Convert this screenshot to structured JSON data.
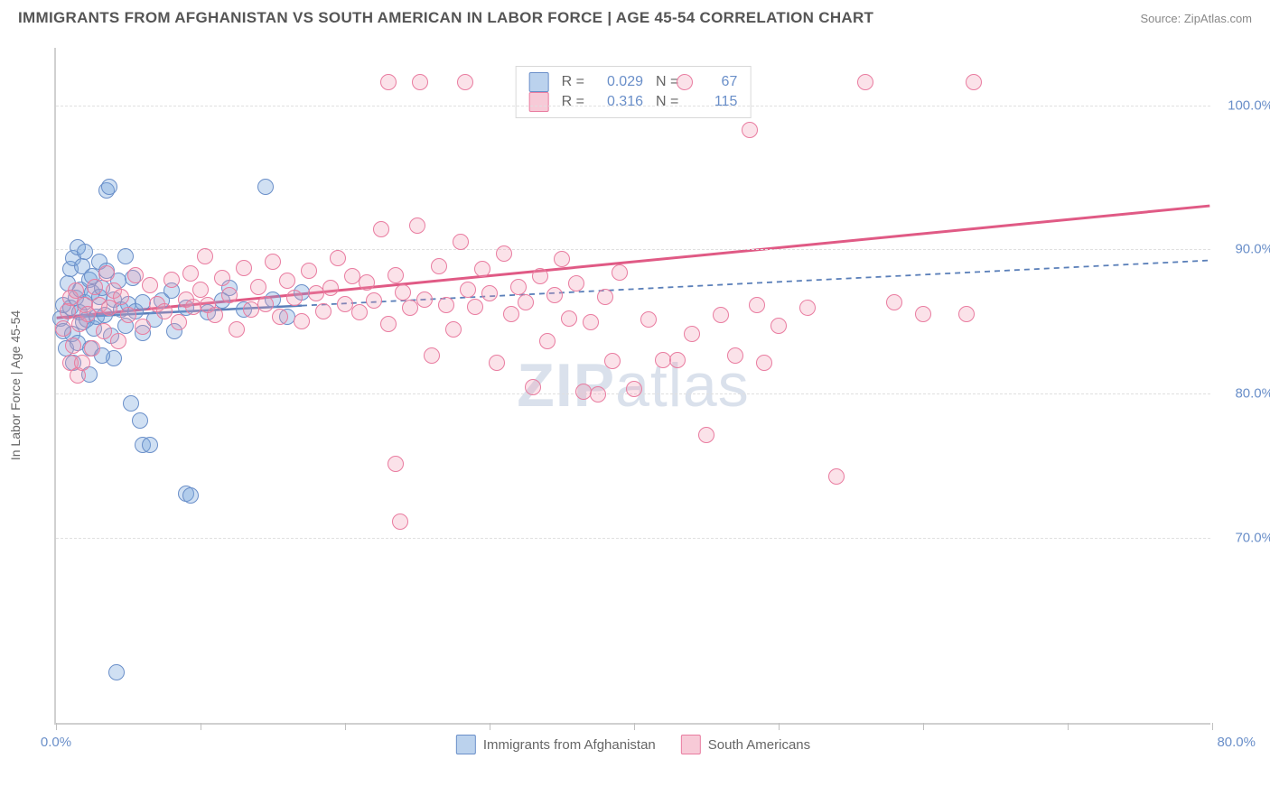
{
  "title": "IMMIGRANTS FROM AFGHANISTAN VS SOUTH AMERICAN IN LABOR FORCE | AGE 45-54 CORRELATION CHART",
  "source": "Source: ZipAtlas.com",
  "watermark_bold": "ZIP",
  "watermark_light": "atlas",
  "chart": {
    "type": "scatter",
    "xlim": [
      0,
      80
    ],
    "ylim": [
      57,
      104
    ],
    "xticks": [
      0,
      10,
      20,
      30,
      40,
      50,
      60,
      70,
      80
    ],
    "xtick_labels_shown": {
      "0": "0.0%",
      "80": "80.0%"
    },
    "yticks": [
      70,
      80,
      90,
      100
    ],
    "ytick_labels": [
      "70.0%",
      "80.0%",
      "90.0%",
      "100.0%"
    ],
    "yaxis_title": "In Labor Force | Age 45-54",
    "background_color": "#ffffff",
    "grid_color": "#e0e0e0",
    "grid_dash": "4,4",
    "marker_radius": 9,
    "axis_color": "#d0d0d0",
    "label_color": "#6a8fc9",
    "title_color": "#555555",
    "title_fontsize": 17
  },
  "series": [
    {
      "name": "Immigrants from Afghanistan",
      "color_fill": "rgba(120,165,220,0.35)",
      "color_stroke": "#6a8fc9",
      "R": "0.029",
      "N": "67",
      "trend": {
        "x1": 0,
        "y1": 85.2,
        "x2": 80,
        "y2": 89.2,
        "stroke": "#5a7fb9",
        "solid_until_x": 17
      },
      "points": [
        [
          0.3,
          85.1
        ],
        [
          0.5,
          86.0
        ],
        [
          0.5,
          84.2
        ],
        [
          0.7,
          83.0
        ],
        [
          0.8,
          87.5
        ],
        [
          1.0,
          85.8
        ],
        [
          1.0,
          88.5
        ],
        [
          1.1,
          84.0
        ],
        [
          1.2,
          89.3
        ],
        [
          1.2,
          82.0
        ],
        [
          1.4,
          86.5
        ],
        [
          1.5,
          90.0
        ],
        [
          1.5,
          83.4
        ],
        [
          1.6,
          85.5
        ],
        [
          1.7,
          87.1
        ],
        [
          1.8,
          88.7
        ],
        [
          1.9,
          84.8
        ],
        [
          2.0,
          86.2
        ],
        [
          2.0,
          89.7
        ],
        [
          2.1,
          85.0
        ],
        [
          2.3,
          87.8
        ],
        [
          2.4,
          83.0
        ],
        [
          2.5,
          86.9
        ],
        [
          2.5,
          88.0
        ],
        [
          2.6,
          84.4
        ],
        [
          2.8,
          85.2
        ],
        [
          3.0,
          89.0
        ],
        [
          3.0,
          86.6
        ],
        [
          3.2,
          87.2
        ],
        [
          3.4,
          85.3
        ],
        [
          3.5,
          88.4
        ],
        [
          3.5,
          94.0
        ],
        [
          3.7,
          94.2
        ],
        [
          3.8,
          83.9
        ],
        [
          4.0,
          86.4
        ],
        [
          4.0,
          82.3
        ],
        [
          4.3,
          87.7
        ],
        [
          4.5,
          85.7
        ],
        [
          4.8,
          84.6
        ],
        [
          4.8,
          89.4
        ],
        [
          5.0,
          86.1
        ],
        [
          5.2,
          79.2
        ],
        [
          5.3,
          87.9
        ],
        [
          5.5,
          85.6
        ],
        [
          5.8,
          78.0
        ],
        [
          6.0,
          86.2
        ],
        [
          6.0,
          76.3
        ],
        [
          6.0,
          84.1
        ],
        [
          6.5,
          76.3
        ],
        [
          6.8,
          85.0
        ],
        [
          7.3,
          86.3
        ],
        [
          8.0,
          87.0
        ],
        [
          8.2,
          84.2
        ],
        [
          9.0,
          85.8
        ],
        [
          9.0,
          72.9
        ],
        [
          9.3,
          72.8
        ],
        [
          10.5,
          85.5
        ],
        [
          11.5,
          86.3
        ],
        [
          12.0,
          87.2
        ],
        [
          13.0,
          85.7
        ],
        [
          14.5,
          94.2
        ],
        [
          15.0,
          86.4
        ],
        [
          16.0,
          85.2
        ],
        [
          17.0,
          86.9
        ],
        [
          4.2,
          60.5
        ],
        [
          3.2,
          82.5
        ],
        [
          2.3,
          81.2
        ]
      ]
    },
    {
      "name": "South Americans",
      "color_fill": "rgba(240,150,175,0.28)",
      "color_stroke": "#e97ca0",
      "R": "0.316",
      "N": "115",
      "trend": {
        "x1": 0,
        "y1": 85.2,
        "x2": 80,
        "y2": 93.0,
        "stroke": "#e05a85",
        "solid_until_x": 80
      },
      "points": [
        [
          0.5,
          84.4
        ],
        [
          0.8,
          85.6
        ],
        [
          1.0,
          82.0
        ],
        [
          1.0,
          86.5
        ],
        [
          1.2,
          83.2
        ],
        [
          1.4,
          87.0
        ],
        [
          1.5,
          81.1
        ],
        [
          1.6,
          84.7
        ],
        [
          1.8,
          82.0
        ],
        [
          2.0,
          86.0
        ],
        [
          2.2,
          85.4
        ],
        [
          2.5,
          83.0
        ],
        [
          2.7,
          87.3
        ],
        [
          3.0,
          86.0
        ],
        [
          3.3,
          84.2
        ],
        [
          3.5,
          88.2
        ],
        [
          3.7,
          85.8
        ],
        [
          4.0,
          87.0
        ],
        [
          4.3,
          83.5
        ],
        [
          4.5,
          86.6
        ],
        [
          5.0,
          85.3
        ],
        [
          5.5,
          88.1
        ],
        [
          6.0,
          84.5
        ],
        [
          6.5,
          87.4
        ],
        [
          7.0,
          86.1
        ],
        [
          7.5,
          85.6
        ],
        [
          8.0,
          87.8
        ],
        [
          8.5,
          84.8
        ],
        [
          9.0,
          86.4
        ],
        [
          9.3,
          88.2
        ],
        [
          9.5,
          85.9
        ],
        [
          10.0,
          87.1
        ],
        [
          10.3,
          89.4
        ],
        [
          10.5,
          86.0
        ],
        [
          11.0,
          85.3
        ],
        [
          11.5,
          87.9
        ],
        [
          12.0,
          86.7
        ],
        [
          12.5,
          84.3
        ],
        [
          13.0,
          88.6
        ],
        [
          13.5,
          85.7
        ],
        [
          14.0,
          87.3
        ],
        [
          14.5,
          86.1
        ],
        [
          15.0,
          89.0
        ],
        [
          15.5,
          85.2
        ],
        [
          16.0,
          87.7
        ],
        [
          16.5,
          86.5
        ],
        [
          17.0,
          84.9
        ],
        [
          17.5,
          88.4
        ],
        [
          18.0,
          86.8
        ],
        [
          18.5,
          85.6
        ],
        [
          19.0,
          87.2
        ],
        [
          19.5,
          89.3
        ],
        [
          20.0,
          86.1
        ],
        [
          20.5,
          88.0
        ],
        [
          21.0,
          85.5
        ],
        [
          21.5,
          87.6
        ],
        [
          22.0,
          86.3
        ],
        [
          22.5,
          91.3
        ],
        [
          23.0,
          84.7
        ],
        [
          23.5,
          88.1
        ],
        [
          24.0,
          86.9
        ],
        [
          24.5,
          85.8
        ],
        [
          25.0,
          91.5
        ],
        [
          25.2,
          101.5
        ],
        [
          25.5,
          86.4
        ],
        [
          26.0,
          82.5
        ],
        [
          26.5,
          88.7
        ],
        [
          27.0,
          86.0
        ],
        [
          27.5,
          84.3
        ],
        [
          28.0,
          90.4
        ],
        [
          28.3,
          101.5
        ],
        [
          28.5,
          87.1
        ],
        [
          29.0,
          85.9
        ],
        [
          29.5,
          88.5
        ],
        [
          30.0,
          86.8
        ],
        [
          30.5,
          82.0
        ],
        [
          31.0,
          89.6
        ],
        [
          31.5,
          85.4
        ],
        [
          32.0,
          87.3
        ],
        [
          32.5,
          86.2
        ],
        [
          33.0,
          80.3
        ],
        [
          33.5,
          88.0
        ],
        [
          34.0,
          83.5
        ],
        [
          34.5,
          86.7
        ],
        [
          35.0,
          89.2
        ],
        [
          35.5,
          85.1
        ],
        [
          36.0,
          87.5
        ],
        [
          36.5,
          80.0
        ],
        [
          37.0,
          84.8
        ],
        [
          37.5,
          79.8
        ],
        [
          38.0,
          86.6
        ],
        [
          38.5,
          82.1
        ],
        [
          39.0,
          88.3
        ],
        [
          40.0,
          80.2
        ],
        [
          41.0,
          85.0
        ],
        [
          42.0,
          82.2
        ],
        [
          43.0,
          82.2
        ],
        [
          43.5,
          101.5
        ],
        [
          44.0,
          84.0
        ],
        [
          45.0,
          77.0
        ],
        [
          46.0,
          85.3
        ],
        [
          47.0,
          82.5
        ],
        [
          48.0,
          98.2
        ],
        [
          48.5,
          86.0
        ],
        [
          49.0,
          82.0
        ],
        [
          50.0,
          84.6
        ],
        [
          52.0,
          85.8
        ],
        [
          54.0,
          74.1
        ],
        [
          56.0,
          101.5
        ],
        [
          58.0,
          86.2
        ],
        [
          60.0,
          85.4
        ],
        [
          63.0,
          85.4
        ],
        [
          23.0,
          101.5
        ],
        [
          23.5,
          75.0
        ],
        [
          23.8,
          71.0
        ],
        [
          63.5,
          101.5
        ]
      ]
    }
  ],
  "legend_top": {
    "R_label": "R =",
    "N_label": "N ="
  },
  "legend_bottom": [
    {
      "swatch": "blue",
      "label_path": "series.0.name"
    },
    {
      "swatch": "pink",
      "label_path": "series.1.name"
    }
  ]
}
